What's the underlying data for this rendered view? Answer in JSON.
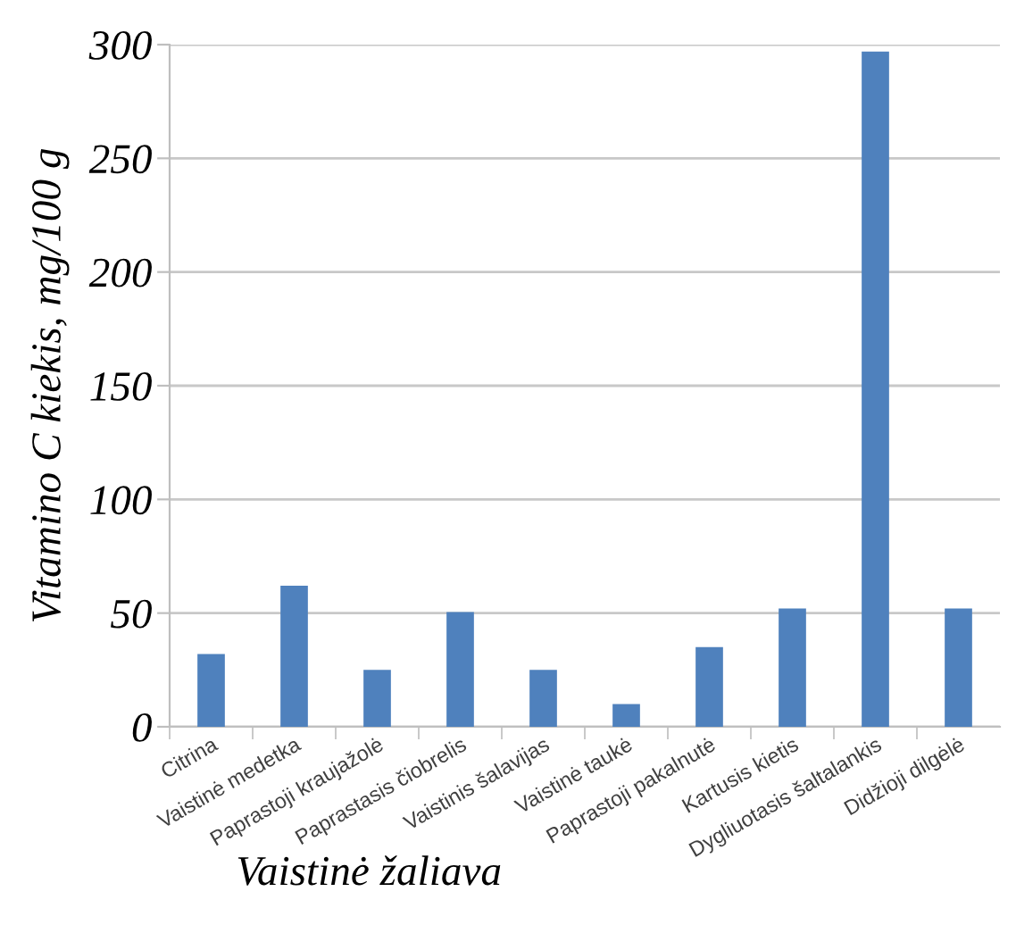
{
  "chart_data": {
    "type": "bar",
    "xlabel": "Vaistinė žaliava",
    "ylabel": "Vitamino C kiekis, mg/100 g",
    "categories": [
      "Citrina",
      "Vaistinė medetka",
      "Paprastoji kraujažolė",
      "Paprastasis čiobrelis",
      "Vaistinis šalavijas",
      "Vaistinė taukė",
      "Paprastoji pakalnutė",
      "Kartusis kietis",
      "Dygliuotasis šaltalankis",
      "Didžioji dilgėlė"
    ],
    "values": [
      32,
      62,
      25,
      50.5,
      25,
      10,
      35,
      52,
      297,
      52
    ],
    "color": "#4f81bd",
    "ylim": [
      0,
      300
    ],
    "yticks": [
      0,
      50,
      100,
      150,
      200,
      250,
      300
    ],
    "grid": "y",
    "legend": false
  }
}
